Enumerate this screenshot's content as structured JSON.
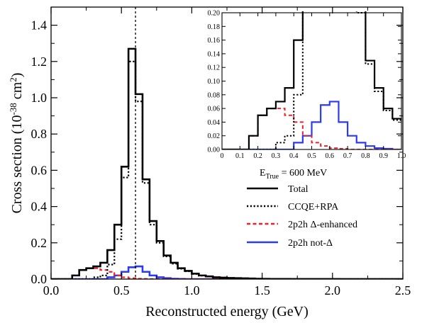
{
  "chart_data": {
    "type": "line",
    "x_label": "Reconstructed energy (GeV)",
    "y_label": "Cross section (10",
    "y_label_sup1": "-38",
    "y_label_mid": " cm",
    "y_label_sup2": "2",
    "y_label_end": ")",
    "xlim": [
      0.0,
      2.5
    ],
    "ylim": [
      0.0,
      1.5
    ],
    "x_ticks": [
      "0.0",
      "0.5",
      "1.0",
      "1.5",
      "2.0",
      "2.5"
    ],
    "y_ticks": [
      "0.0",
      "0.2",
      "0.4",
      "0.6",
      "0.8",
      "1.0",
      "1.2",
      "1.4"
    ],
    "bin_edges": [
      0.0,
      0.05,
      0.1,
      0.15,
      0.2,
      0.25,
      0.3,
      0.35,
      0.4,
      0.45,
      0.5,
      0.55,
      0.6,
      0.65,
      0.7,
      0.75,
      0.8,
      0.85,
      0.9,
      0.95,
      1.0,
      1.05,
      1.1,
      1.15,
      1.2,
      1.25,
      1.3,
      1.35,
      1.4,
      1.45,
      1.5,
      1.55,
      1.6,
      1.65,
      1.7,
      1.75,
      1.8,
      1.85,
      1.9,
      1.95,
      2.0,
      2.05,
      2.1,
      2.15,
      2.2,
      2.25,
      2.3,
      2.35,
      2.4,
      2.45,
      2.5
    ],
    "true_energy_marker": 0.6,
    "series": [
      {
        "name": "Total",
        "color": "#000000",
        "dash": "solid",
        "values": [
          0.0,
          0.0,
          0.0,
          0.02,
          0.05,
          0.06,
          0.07,
          0.09,
          0.16,
          0.3,
          0.62,
          1.27,
          1.02,
          0.55,
          0.32,
          0.21,
          0.13,
          0.09,
          0.06,
          0.045,
          0.03,
          0.02,
          0.015,
          0.01,
          0.008,
          0.006,
          0.005,
          0.004,
          0.003,
          0.002,
          0.0015,
          0.001,
          0.0008,
          0.0006,
          0.0005,
          0.0004,
          0.0003,
          0.0002,
          0.0002,
          0.0001,
          0.0001,
          0.0,
          0.0,
          0.0,
          0.0,
          0.0,
          0.0,
          0.0,
          0.0,
          0.0
        ]
      },
      {
        "name": "CCQE+RPA",
        "color": "#000000",
        "dash": "dotted",
        "values": [
          0.0,
          0.0,
          0.0,
          0.0,
          0.0,
          0.0,
          0.01,
          0.02,
          0.08,
          0.22,
          0.56,
          1.2,
          0.98,
          0.53,
          0.3,
          0.2,
          0.125,
          0.085,
          0.057,
          0.043,
          0.028,
          0.019,
          0.014,
          0.009,
          0.007,
          0.005,
          0.004,
          0.003,
          0.002,
          0.0015,
          0.001,
          0.0008,
          0.0006,
          0.0005,
          0.0004,
          0.0003,
          0.0002,
          0.0002,
          0.0001,
          0.0001,
          0.0,
          0.0,
          0.0,
          0.0,
          0.0,
          0.0,
          0.0,
          0.0,
          0.0,
          0.0
        ]
      },
      {
        "name": "2p2h Δ-enhanced",
        "color": "#e8242b",
        "dash": "dashed",
        "values": [
          0.0,
          0.0,
          0.0,
          0.02,
          0.05,
          0.06,
          0.06,
          0.05,
          0.04,
          0.02,
          0.01,
          0.005,
          0.002,
          0.001,
          0.0,
          0.0,
          0.0,
          0.0,
          0.0,
          0.0,
          0.0,
          0.0,
          0.0,
          0.0,
          0.0,
          0.0,
          0.0,
          0.0,
          0.0,
          0.0,
          0.0,
          0.0,
          0.0,
          0.0,
          0.0,
          0.0,
          0.0,
          0.0,
          0.0,
          0.0,
          0.0,
          0.0,
          0.0,
          0.0,
          0.0,
          0.0,
          0.0,
          0.0,
          0.0,
          0.0
        ]
      },
      {
        "name": "2p2h not-Δ",
        "color": "#2a3bf0",
        "dash": "solid",
        "values": [
          0.0,
          0.0,
          0.0,
          0.0,
          0.0,
          0.0,
          0.0,
          0.0,
          0.01,
          0.02,
          0.04,
          0.065,
          0.07,
          0.04,
          0.02,
          0.01,
          0.005,
          0.002,
          0.001,
          0.0,
          0.0,
          0.0,
          0.0,
          0.0,
          0.0,
          0.0,
          0.0,
          0.0,
          0.0,
          0.0,
          0.0,
          0.0,
          0.0,
          0.0,
          0.0,
          0.0,
          0.0,
          0.0,
          0.0,
          0.0,
          0.0,
          0.0,
          0.0,
          0.0,
          0.0,
          0.0,
          0.0,
          0.0,
          0.0,
          0.0
        ]
      }
    ],
    "inset": {
      "xlim": [
        0.0,
        1.0
      ],
      "ylim": [
        0.0,
        0.2
      ],
      "x_ticks": [
        "0",
        "0.1",
        "0.2",
        "0.3",
        "0.4",
        "0.5",
        "0.6",
        "0.7",
        "0.8",
        "0.9",
        "1.0"
      ],
      "y_ticks": [
        "0.00",
        "0.02",
        "0.04",
        "0.06",
        "0.08",
        "0.10",
        "0.12",
        "0.14",
        "0.16",
        "0.18",
        "0.20"
      ]
    },
    "legend": {
      "placement": "right",
      "heading_prefix": "E",
      "heading_sub": "True",
      "heading_suffix": " = 600 MeV",
      "items": [
        "Total",
        "CCQE+RPA",
        "2p2h Δ-enhanced",
        "2p2h not-Δ"
      ]
    }
  }
}
